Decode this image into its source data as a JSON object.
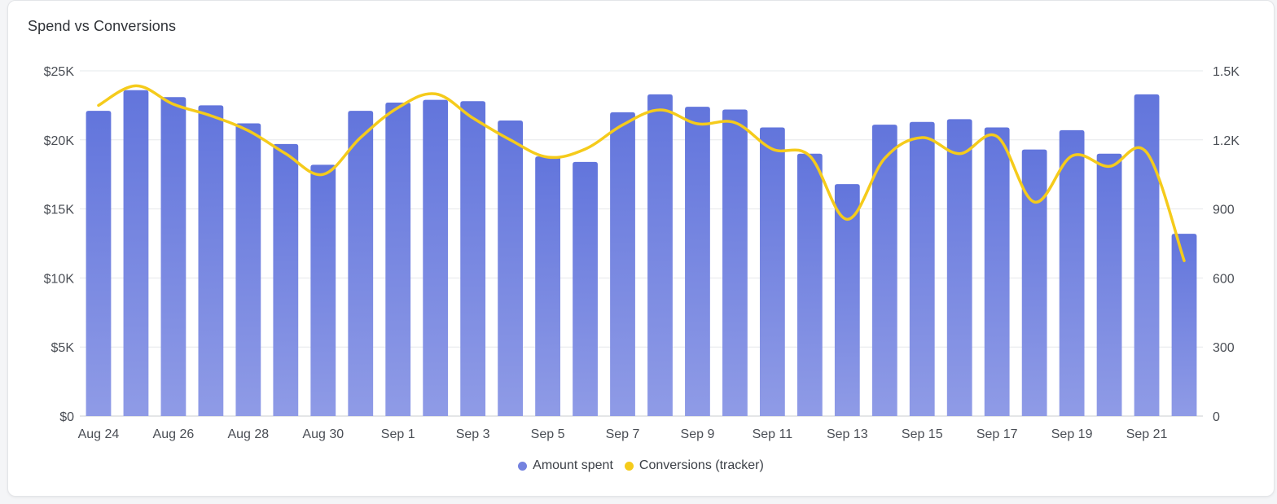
{
  "title": "Spend vs Conversions",
  "colors": {
    "bar_top": "#6275dc",
    "bar_bottom": "#8f9be6",
    "line": "#f5cb1b",
    "grid": "#e6e8eb",
    "axis": "#c9ccd1"
  },
  "legend": [
    {
      "label": "Amount spent",
      "color": "#7482df"
    },
    {
      "label": "Conversions (tracker)",
      "color": "#f5cb1b"
    }
  ],
  "chart_data": {
    "type": "bar",
    "categories": [
      "Aug 24",
      "Aug 25",
      "Aug 26",
      "Aug 27",
      "Aug 28",
      "Aug 29",
      "Aug 30",
      "Aug 31",
      "Sep 1",
      "Sep 2",
      "Sep 3",
      "Sep 4",
      "Sep 5",
      "Sep 6",
      "Sep 7",
      "Sep 8",
      "Sep 9",
      "Sep 10",
      "Sep 11",
      "Sep 12",
      "Sep 13",
      "Sep 14",
      "Sep 15",
      "Sep 16",
      "Sep 17",
      "Sep 18",
      "Sep 19",
      "Sep 20",
      "Sep 21",
      "Sep 22"
    ],
    "x_tick_labels": [
      "Aug 24",
      "",
      "Aug 26",
      "",
      "Aug 28",
      "",
      "Aug 30",
      "",
      "Sep 1",
      "",
      "Sep 3",
      "",
      "Sep 5",
      "",
      "Sep 7",
      "",
      "Sep 9",
      "",
      "Sep 11",
      "",
      "Sep 13",
      "",
      "Sep 15",
      "",
      "Sep 17",
      "",
      "Sep 19",
      "",
      "Sep 21",
      ""
    ],
    "series": [
      {
        "name": "Amount spent",
        "type": "bar",
        "axis": "left",
        "values": [
          22100,
          23600,
          23100,
          22500,
          21200,
          19700,
          18200,
          22100,
          22700,
          22900,
          22800,
          21400,
          18800,
          18400,
          22000,
          23300,
          22400,
          22200,
          20900,
          19000,
          16800,
          21100,
          21300,
          21500,
          20900,
          19300,
          20700,
          19000,
          23300,
          13200
        ]
      },
      {
        "name": "Conversions (tracker)",
        "type": "line",
        "axis": "right",
        "values": [
          1350,
          1435,
          1355,
          1305,
          1240,
          1140,
          1050,
          1210,
          1340,
          1400,
          1295,
          1200,
          1125,
          1160,
          1265,
          1330,
          1270,
          1275,
          1160,
          1130,
          855,
          1120,
          1210,
          1140,
          1215,
          930,
          1130,
          1085,
          1145,
          675
        ]
      }
    ],
    "y_left": {
      "ticks": [
        "$0",
        "$5K",
        "$10K",
        "$15K",
        "$20K",
        "$25K"
      ],
      "values": [
        0,
        5000,
        10000,
        15000,
        20000,
        25000
      ],
      "ylim": [
        0,
        25000
      ]
    },
    "y_right": {
      "ticks": [
        "0",
        "300",
        "600",
        "900",
        "1.2K",
        "1.5K"
      ],
      "values": [
        0,
        300,
        600,
        900,
        1200,
        1500
      ],
      "ylim": [
        0,
        1500
      ]
    },
    "grid": true,
    "legend_position": "bottom"
  }
}
